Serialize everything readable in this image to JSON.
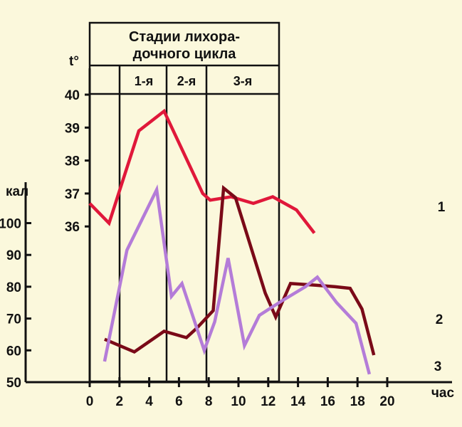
{
  "chart_data": {
    "type": "line",
    "title": "Стадии лихора-дочного цикла",
    "title_lines": [
      "Стадии лихора-",
      "дочного цикла"
    ],
    "stages": [
      "1-я",
      "2-я",
      "3-я"
    ],
    "stage_boundaries_hours": [
      2,
      4,
      7.5,
      12
    ],
    "x": {
      "label": "час",
      "ticks": [
        0,
        2,
        4,
        6,
        8,
        10,
        12,
        14,
        16,
        18,
        20
      ],
      "range": [
        0,
        22
      ]
    },
    "y_temp": {
      "label": "t°",
      "ticks": [
        36,
        37,
        38,
        39,
        40
      ],
      "range": [
        36,
        40
      ]
    },
    "y_cal": {
      "label": "кал",
      "ticks": [
        50,
        60,
        70,
        80,
        90,
        100
      ],
      "range": [
        50,
        100
      ]
    },
    "series": [
      {
        "name": "1",
        "axis": "y_temp",
        "color": "#e0183a",
        "points": [
          [
            0,
            36.7
          ],
          [
            1.3,
            36.1
          ],
          [
            3.3,
            38.9
          ],
          [
            5,
            39.5
          ],
          [
            7.6,
            37.0
          ],
          [
            8.1,
            36.8
          ],
          [
            9.5,
            36.9
          ],
          [
            11,
            36.7
          ],
          [
            12.3,
            36.9
          ],
          [
            13.9,
            36.5
          ],
          [
            15.1,
            35.8
          ]
        ]
      },
      {
        "name": "2",
        "axis": "y_cal",
        "color": "#7a0a18",
        "points": [
          [
            1,
            63.5
          ],
          [
            3,
            59.5
          ],
          [
            5,
            66
          ],
          [
            6.5,
            64
          ],
          [
            7.2,
            67
          ],
          [
            8.3,
            72.5
          ],
          [
            9,
            111
          ],
          [
            9.8,
            108
          ],
          [
            11.8,
            78
          ],
          [
            12.5,
            70.5
          ],
          [
            13.5,
            81
          ],
          [
            15.2,
            80.5
          ],
          [
            16.5,
            80
          ],
          [
            17.5,
            79.5
          ],
          [
            18.3,
            73
          ],
          [
            19.1,
            58.5
          ]
        ]
      },
      {
        "name": "3",
        "axis": "y_cal",
        "color": "#b47cd8",
        "points": [
          [
            1,
            56.5
          ],
          [
            2.5,
            91.5
          ],
          [
            4.5,
            110.5
          ],
          [
            5.5,
            77
          ],
          [
            6.2,
            81
          ],
          [
            7.7,
            60
          ],
          [
            8.4,
            69
          ],
          [
            9.3,
            89
          ],
          [
            10.4,
            61.5
          ],
          [
            11.4,
            71
          ],
          [
            12.9,
            75.5
          ],
          [
            14.5,
            80
          ],
          [
            15.3,
            83
          ],
          [
            16.6,
            75
          ],
          [
            17.9,
            68.5
          ],
          [
            18.8,
            52.5
          ]
        ]
      }
    ]
  }
}
